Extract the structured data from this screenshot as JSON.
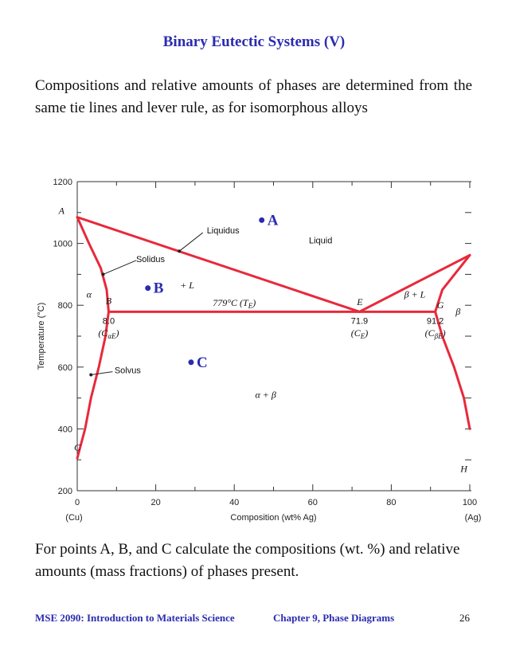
{
  "title": "Binary Eutectic Systems (V)",
  "intro": "Compositions and relative amounts of phases are determined from the same tie lines and lever rule, as for isomorphous alloys",
  "question": "For points A, B, and C calculate the compositions (wt. %) and relative amounts (mass fractions) of phases present.",
  "footer": {
    "course": "MSE 2090: Introduction to Materials Science",
    "chapter": "Chapter 9, Phase Diagrams",
    "page": "26"
  },
  "colors": {
    "accent": "#2b2bb0",
    "curve": "#e8293b"
  },
  "chart_data": {
    "type": "phase-diagram",
    "xlabel": "Composition (wt% Ag)",
    "ylabel": "Temperature (°C)",
    "xlim": [
      0,
      100
    ],
    "ylim": [
      200,
      1200
    ],
    "x_ticks": [
      "0",
      "20",
      "40",
      "60",
      "80",
      "100"
    ],
    "y_ticks": [
      "200",
      "400",
      "600",
      "800",
      "1000",
      "1200"
    ],
    "x_end_labels": {
      "left": "(Cu)",
      "right": "(Ag)"
    },
    "eutectic": {
      "temperature": 779,
      "label": "779°C (T",
      "label_sub": "E",
      "label_close": ")"
    },
    "compositions": [
      {
        "id": "CaE",
        "x": 8.0,
        "value": "8.0",
        "label": "(C",
        "sub": "αE",
        "close": ")"
      },
      {
        "id": "CE",
        "x": 71.9,
        "value": "71.9",
        "label": "(C",
        "sub": "E",
        "close": ")"
      },
      {
        "id": "CbE",
        "x": 91.2,
        "value": "91.2",
        "label": "(C",
        "sub": "βE",
        "close": ")"
      }
    ],
    "curves": {
      "liquidus_left": [
        [
          0,
          1085
        ],
        [
          71.9,
          779
        ]
      ],
      "liquidus_right": [
        [
          71.9,
          779
        ],
        [
          100,
          962
        ]
      ],
      "solidus_left": [
        [
          0,
          1085
        ],
        [
          3,
          1000
        ],
        [
          6,
          920
        ],
        [
          7.5,
          850
        ],
        [
          8.0,
          779
        ]
      ],
      "solvus_left": [
        [
          8.0,
          779
        ],
        [
          7.2,
          700
        ],
        [
          5.5,
          600
        ],
        [
          3.5,
          500
        ],
        [
          2,
          400
        ],
        [
          0,
          305
        ]
      ],
      "solidus_right": [
        [
          100,
          962
        ],
        [
          93,
          850
        ],
        [
          91.2,
          779
        ]
      ],
      "solvus_right": [
        [
          91.2,
          779
        ],
        [
          93,
          700
        ],
        [
          96,
          600
        ],
        [
          98.5,
          500
        ],
        [
          100,
          400
        ]
      ]
    },
    "points": {
      "A": {
        "label": "A",
        "x": 47,
        "temperature": 1060
      },
      "B": {
        "label": "B",
        "x": 18,
        "temperature": 840
      },
      "C": {
        "label": "C",
        "x": 29,
        "temperature": 600
      }
    },
    "region_labels": {
      "liquid": "Liquid",
      "alpha": "α",
      "alpha_L": "+ L",
      "beta_L": "β + L",
      "beta": "β",
      "alpha_beta": "α + β"
    },
    "callouts": {
      "liquidus": "Liquidus",
      "solidus": "Solidus",
      "solvus": "Solvus"
    },
    "point_letters": {
      "A": "A",
      "B": "B",
      "C": "C",
      "E": "E",
      "G": "G",
      "H": "H"
    }
  }
}
